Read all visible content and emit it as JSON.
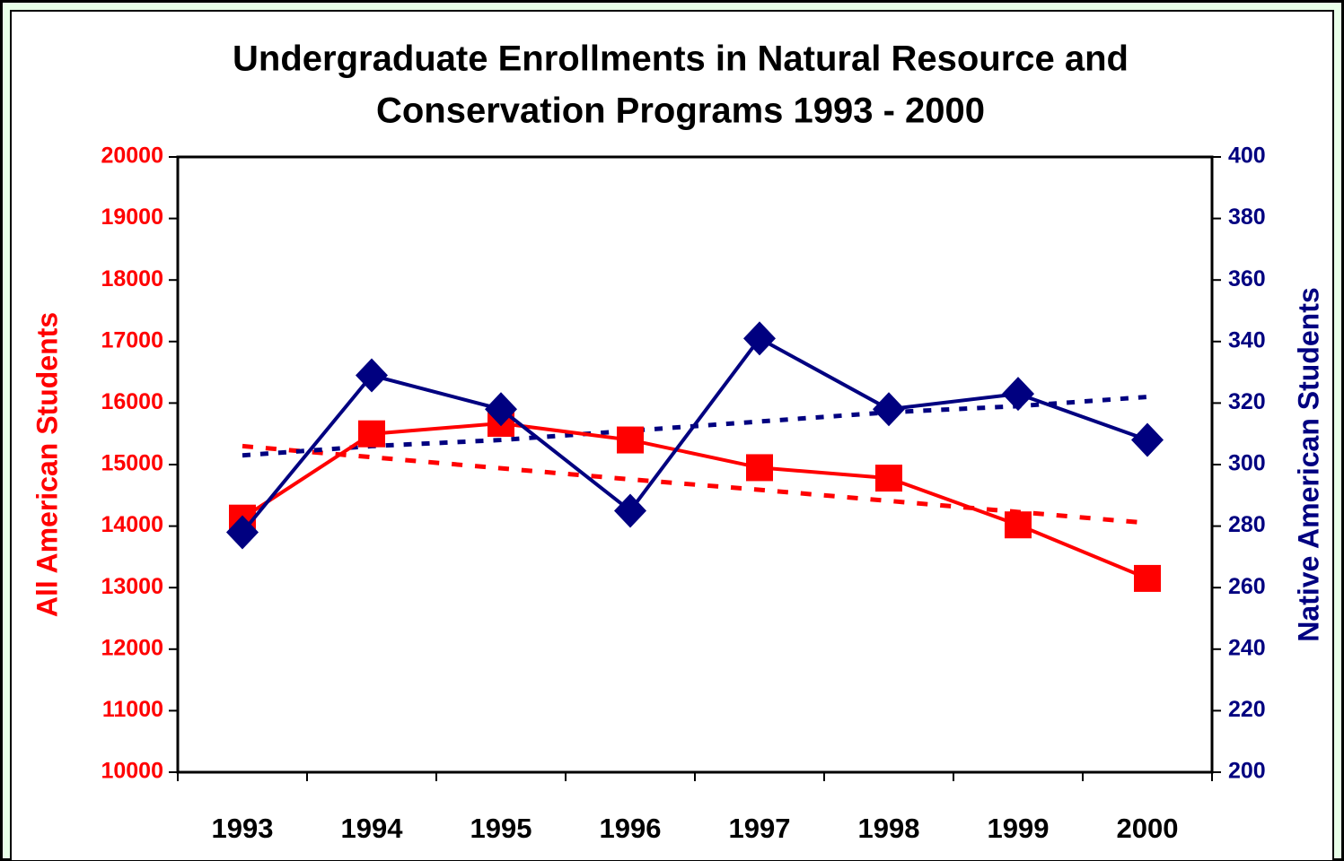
{
  "chart_data": {
    "type": "line",
    "title": [
      "Undergraduate Enrollments in Natural Resource and",
      "Conservation Programs 1993 - 2000"
    ],
    "y_label": "All American Students",
    "y2_label": "Native American Students",
    "categories": [
      "1993",
      "1994",
      "1995",
      "1996",
      "1997",
      "1998",
      "1999",
      "2000"
    ],
    "series": [
      {
        "color": "#ff0000",
        "marker": "square",
        "values": [
          14130,
          15500,
          15670,
          15400,
          14950,
          14780,
          14020,
          13150
        ]
      },
      {
        "color": "#000080",
        "marker": "diamond",
        "axis": "y2",
        "values": [
          278,
          329,
          318,
          285,
          341,
          318,
          323,
          308
        ]
      },
      {
        "color": "#ff0000",
        "line_style": "dashed",
        "values": [
          15300,
          15120,
          14940,
          14760,
          14590,
          14410,
          14230,
          14050
        ]
      },
      {
        "color": "#000080",
        "line_style": "dotted",
        "axis": "y2",
        "values": [
          303,
          306,
          308,
          311,
          314,
          317,
          319,
          322
        ]
      }
    ],
    "ylim": [
      10000,
      20000
    ],
    "yticks": [
      10000,
      11000,
      12000,
      13000,
      14000,
      15000,
      16000,
      17000,
      18000,
      19000,
      20000
    ],
    "y2lim": [
      200,
      400
    ],
    "y2ticks": [
      200,
      220,
      240,
      260,
      280,
      300,
      320,
      340,
      360,
      380,
      400
    ],
    "grid": false
  }
}
